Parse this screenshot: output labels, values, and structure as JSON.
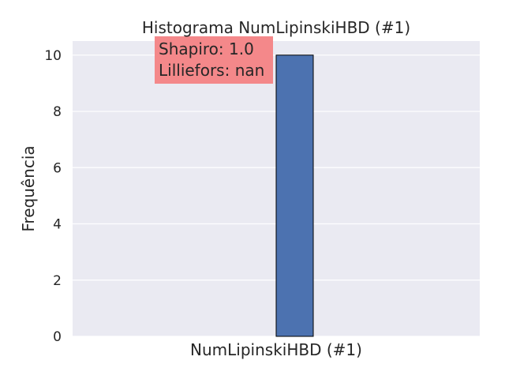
{
  "chart_data": {
    "type": "bar",
    "title": "Histograma NumLipinskiHBD (#1)",
    "xlabel": "NumLipinskiHBD (#1)",
    "ylabel": "Frequência",
    "categories": [
      ""
    ],
    "values": [
      10
    ],
    "ylim": [
      0,
      10.5
    ],
    "yticks": [
      0,
      2,
      4,
      6,
      8,
      10
    ],
    "grid": true,
    "colors": {
      "plot_background": "#eaeaf2",
      "gridline": "#ffffff",
      "bar_fill": "#4c72b0",
      "bar_edge": "#000000",
      "annotation_background": "#f4888a"
    },
    "annotation": {
      "lines": [
        "Shapiro: 1.0",
        "Lilliefors: nan"
      ]
    }
  }
}
